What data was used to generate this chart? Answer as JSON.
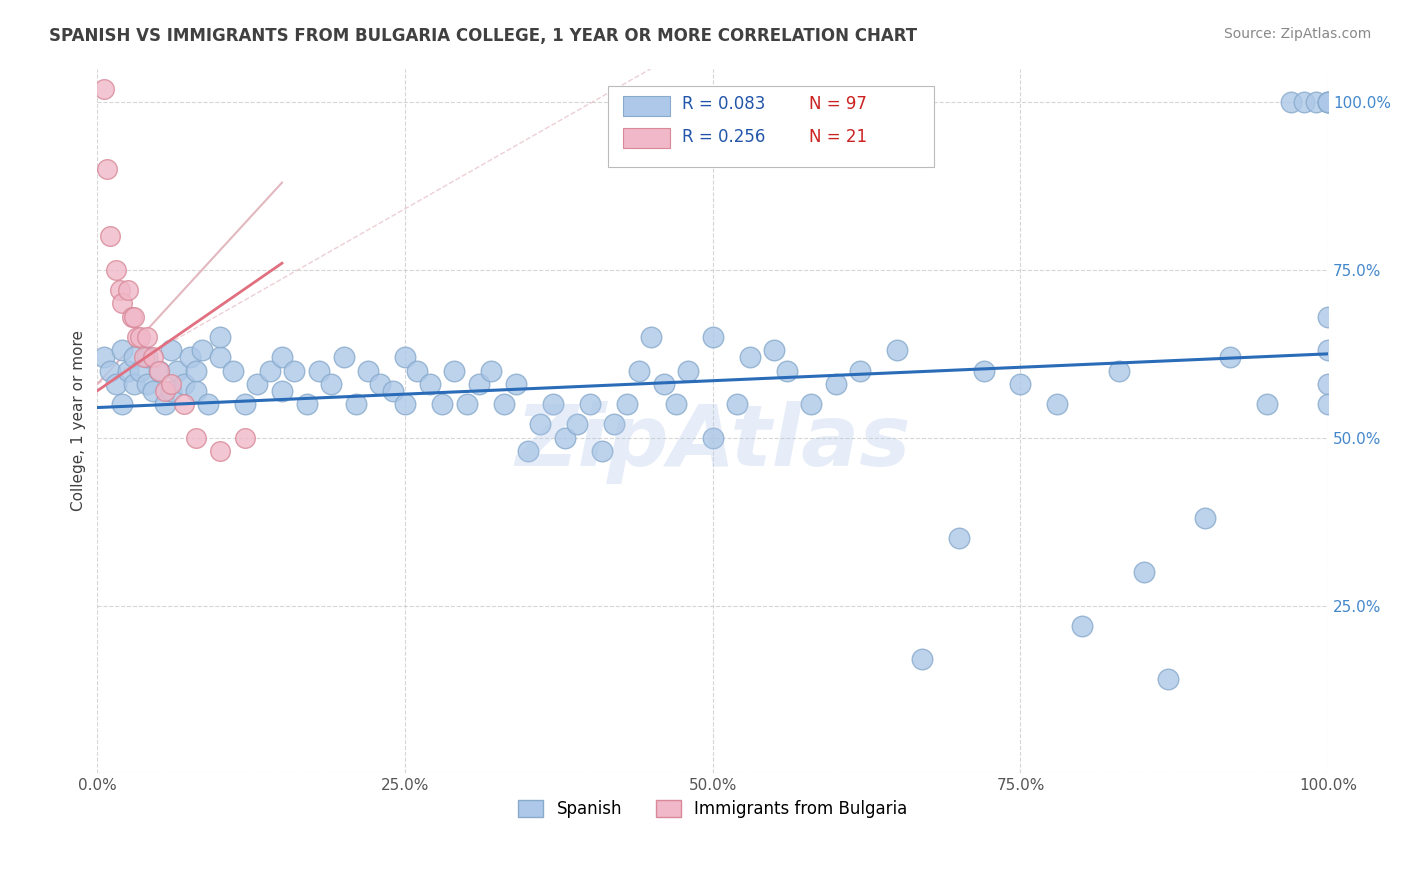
{
  "title": "SPANISH VS IMMIGRANTS FROM BULGARIA COLLEGE, 1 YEAR OR MORE CORRELATION CHART",
  "source": "Source: ZipAtlas.com",
  "ylabel": "College, 1 year or more",
  "watermark": "ZipAtlas",
  "R_blue": 0.083,
  "N_blue": 97,
  "R_pink": 0.256,
  "N_pink": 21,
  "blue_line_color": "#2b6cb8",
  "pink_line_color": "#e07080",
  "scatter_blue_face": "#adc8e8",
  "scatter_blue_edge": "#88aacc",
  "scatter_pink_face": "#f0b8c8",
  "scatter_pink_edge": "#d88898",
  "grid_color": "#cccccc",
  "title_color": "#404040",
  "source_color": "#888888",
  "legend_r_color": "#2255aa",
  "legend_n_color": "#cc2222",
  "ytick_color": "#4488cc",
  "xtick_color": "#555555",
  "diag_color": "#e0b0b8",
  "watermark_color": "#aec6e8",
  "blue_x": [
    0.005,
    0.01,
    0.015,
    0.02,
    0.02,
    0.025,
    0.03,
    0.03,
    0.035,
    0.04,
    0.04,
    0.045,
    0.05,
    0.055,
    0.06,
    0.06,
    0.065,
    0.07,
    0.075,
    0.08,
    0.08,
    0.085,
    0.09,
    0.1,
    0.1,
    0.11,
    0.12,
    0.13,
    0.14,
    0.15,
    0.15,
    0.16,
    0.17,
    0.18,
    0.19,
    0.2,
    0.21,
    0.22,
    0.23,
    0.24,
    0.25,
    0.25,
    0.26,
    0.27,
    0.28,
    0.29,
    0.3,
    0.31,
    0.32,
    0.33,
    0.34,
    0.35,
    0.36,
    0.37,
    0.38,
    0.39,
    0.4,
    0.41,
    0.42,
    0.43,
    0.44,
    0.45,
    0.46,
    0.47,
    0.48,
    0.5,
    0.5,
    0.52,
    0.53,
    0.55,
    0.56,
    0.58,
    0.6,
    0.62,
    0.65,
    0.67,
    0.7,
    0.72,
    0.75,
    0.78,
    0.8,
    0.83,
    0.85,
    0.87,
    0.9,
    0.92,
    0.95,
    0.97,
    0.98,
    0.99,
    1.0,
    1.0,
    1.0,
    1.0,
    1.0,
    1.0,
    1.0
  ],
  "blue_y": [
    0.62,
    0.6,
    0.58,
    0.63,
    0.55,
    0.6,
    0.58,
    0.62,
    0.6,
    0.62,
    0.58,
    0.57,
    0.6,
    0.55,
    0.63,
    0.57,
    0.6,
    0.58,
    0.62,
    0.57,
    0.6,
    0.63,
    0.55,
    0.62,
    0.65,
    0.6,
    0.55,
    0.58,
    0.6,
    0.62,
    0.57,
    0.6,
    0.55,
    0.6,
    0.58,
    0.62,
    0.55,
    0.6,
    0.58,
    0.57,
    0.62,
    0.55,
    0.6,
    0.58,
    0.55,
    0.6,
    0.55,
    0.58,
    0.6,
    0.55,
    0.58,
    0.48,
    0.52,
    0.55,
    0.5,
    0.52,
    0.55,
    0.48,
    0.52,
    0.55,
    0.6,
    0.65,
    0.58,
    0.55,
    0.6,
    0.65,
    0.5,
    0.55,
    0.62,
    0.63,
    0.6,
    0.55,
    0.58,
    0.6,
    0.63,
    0.17,
    0.35,
    0.6,
    0.58,
    0.55,
    0.22,
    0.6,
    0.3,
    0.14,
    0.38,
    0.62,
    0.55,
    1.0,
    1.0,
    1.0,
    1.0,
    1.0,
    1.0,
    0.68,
    0.63,
    0.58,
    0.55
  ],
  "pink_x": [
    0.005,
    0.008,
    0.01,
    0.015,
    0.018,
    0.02,
    0.025,
    0.028,
    0.03,
    0.032,
    0.035,
    0.038,
    0.04,
    0.045,
    0.05,
    0.055,
    0.06,
    0.07,
    0.08,
    0.1,
    0.12
  ],
  "pink_y": [
    1.02,
    0.9,
    0.8,
    0.75,
    0.72,
    0.7,
    0.72,
    0.68,
    0.68,
    0.65,
    0.65,
    0.62,
    0.65,
    0.62,
    0.6,
    0.57,
    0.58,
    0.55,
    0.5,
    0.48,
    0.5
  ]
}
